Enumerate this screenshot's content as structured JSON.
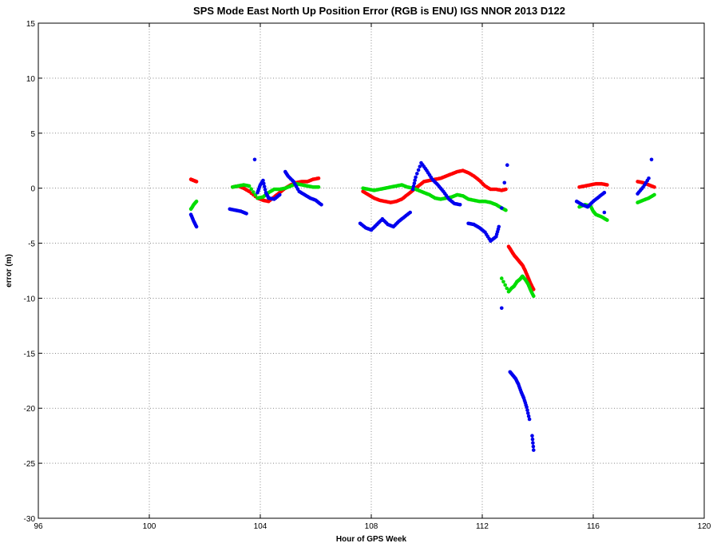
{
  "chart_data": {
    "type": "scatter",
    "title": "SPS Mode  East North Up Position Error  (RGB is ENU)  IGS NNOR 2013 D122",
    "xlabel": "Hour of GPS Week",
    "ylabel": "error (m)",
    "xlim": [
      96,
      120
    ],
    "ylim": [
      -30,
      15
    ],
    "xticks": [
      96,
      100,
      104,
      108,
      112,
      116,
      120
    ],
    "yticks": [
      -30,
      -25,
      -20,
      -15,
      -10,
      -5,
      0,
      5,
      10,
      15
    ],
    "grid": true,
    "series": [
      {
        "color": "#ff0000",
        "points": [
          [
            101.5,
            0.8
          ],
          [
            101.6,
            0.7
          ],
          [
            101.7,
            0.6
          ],
          [
            103.0,
            0.1
          ],
          [
            103.2,
            0.2
          ],
          [
            103.4,
            0.0
          ],
          [
            103.6,
            -0.3
          ],
          [
            103.9,
            -0.9
          ],
          [
            104.1,
            -1.1
          ],
          [
            104.3,
            -1.2
          ],
          [
            104.5,
            -0.8
          ],
          [
            104.7,
            -0.4
          ],
          [
            104.9,
            0.0
          ],
          [
            105.1,
            0.3
          ],
          [
            105.3,
            0.5
          ],
          [
            105.5,
            0.6
          ],
          [
            105.7,
            0.6
          ],
          [
            105.9,
            0.8
          ],
          [
            106.1,
            0.9
          ],
          [
            107.7,
            -0.3
          ],
          [
            107.9,
            -0.6
          ],
          [
            108.1,
            -0.9
          ],
          [
            108.3,
            -1.1
          ],
          [
            108.5,
            -1.2
          ],
          [
            108.7,
            -1.3
          ],
          [
            108.9,
            -1.2
          ],
          [
            109.1,
            -1.0
          ],
          [
            109.3,
            -0.6
          ],
          [
            109.5,
            -0.2
          ],
          [
            109.7,
            0.2
          ],
          [
            109.9,
            0.6
          ],
          [
            110.1,
            0.7
          ],
          [
            110.3,
            0.8
          ],
          [
            110.5,
            0.9
          ],
          [
            110.7,
            1.1
          ],
          [
            110.9,
            1.3
          ],
          [
            111.1,
            1.5
          ],
          [
            111.3,
            1.6
          ],
          [
            111.5,
            1.4
          ],
          [
            111.7,
            1.1
          ],
          [
            111.9,
            0.7
          ],
          [
            112.1,
            0.2
          ],
          [
            112.3,
            -0.1
          ],
          [
            112.5,
            -0.1
          ],
          [
            112.7,
            -0.2
          ],
          [
            112.85,
            -0.1
          ],
          [
            112.95,
            -5.3
          ],
          [
            113.05,
            -5.7
          ],
          [
            113.15,
            -6.1
          ],
          [
            113.25,
            -6.4
          ],
          [
            113.35,
            -6.7
          ],
          [
            113.45,
            -7.0
          ],
          [
            113.55,
            -7.5
          ],
          [
            113.65,
            -8.1
          ],
          [
            113.75,
            -8.7
          ],
          [
            113.85,
            -9.2
          ],
          [
            115.5,
            0.1
          ],
          [
            115.7,
            0.2
          ],
          [
            115.9,
            0.3
          ],
          [
            116.1,
            0.4
          ],
          [
            116.3,
            0.4
          ],
          [
            116.5,
            0.3
          ],
          [
            117.6,
            0.6
          ],
          [
            117.8,
            0.5
          ],
          [
            118.0,
            0.3
          ],
          [
            118.2,
            0.1
          ]
        ]
      },
      {
        "color": "#00dd00",
        "points": [
          [
            101.5,
            -1.9
          ],
          [
            101.6,
            -1.5
          ],
          [
            101.7,
            -1.2
          ],
          [
            103.0,
            0.1
          ],
          [
            103.2,
            0.2
          ],
          [
            103.4,
            0.3
          ],
          [
            103.6,
            0.2
          ],
          [
            103.9,
            -0.9
          ],
          [
            104.1,
            -0.8
          ],
          [
            104.3,
            -0.4
          ],
          [
            104.5,
            -0.1
          ],
          [
            104.7,
            -0.1
          ],
          [
            104.9,
            0.0
          ],
          [
            105.1,
            0.2
          ],
          [
            105.3,
            0.4
          ],
          [
            105.5,
            0.3
          ],
          [
            105.7,
            0.2
          ],
          [
            105.9,
            0.1
          ],
          [
            106.1,
            0.1
          ],
          [
            107.7,
            0.0
          ],
          [
            107.9,
            -0.1
          ],
          [
            108.1,
            -0.2
          ],
          [
            108.3,
            -0.1
          ],
          [
            108.5,
            0.0
          ],
          [
            108.7,
            0.1
          ],
          [
            108.9,
            0.2
          ],
          [
            109.1,
            0.3
          ],
          [
            109.3,
            0.1
          ],
          [
            109.5,
            0.0
          ],
          [
            109.7,
            -0.2
          ],
          [
            109.9,
            -0.4
          ],
          [
            110.1,
            -0.6
          ],
          [
            110.3,
            -0.9
          ],
          [
            110.5,
            -1.0
          ],
          [
            110.7,
            -0.9
          ],
          [
            110.9,
            -0.8
          ],
          [
            111.1,
            -0.6
          ],
          [
            111.3,
            -0.7
          ],
          [
            111.5,
            -1.0
          ],
          [
            111.7,
            -1.1
          ],
          [
            111.9,
            -1.2
          ],
          [
            112.1,
            -1.2
          ],
          [
            112.3,
            -1.3
          ],
          [
            112.5,
            -1.5
          ],
          [
            112.7,
            -1.8
          ],
          [
            112.85,
            -2.0
          ],
          [
            112.7,
            -8.2
          ],
          [
            112.95,
            -9.4
          ],
          [
            113.05,
            -9.1
          ],
          [
            113.15,
            -8.9
          ],
          [
            113.25,
            -8.5
          ],
          [
            113.35,
            -8.3
          ],
          [
            113.45,
            -8.0
          ],
          [
            113.55,
            -8.3
          ],
          [
            113.65,
            -8.7
          ],
          [
            113.75,
            -9.3
          ],
          [
            113.85,
            -9.8
          ],
          [
            115.5,
            -1.7
          ],
          [
            115.7,
            -1.5
          ],
          [
            115.9,
            -1.6
          ],
          [
            116.0,
            -2.1
          ],
          [
            116.1,
            -2.4
          ],
          [
            116.3,
            -2.6
          ],
          [
            116.5,
            -2.9
          ],
          [
            117.6,
            -1.3
          ],
          [
            117.8,
            -1.1
          ],
          [
            118.0,
            -0.9
          ],
          [
            118.2,
            -0.6
          ]
        ]
      },
      {
        "color": "#0000ee",
        "points": [
          [
            101.5,
            -2.4
          ],
          [
            101.6,
            -3.0
          ],
          [
            101.7,
            -3.5
          ],
          [
            102.9,
            -1.9
          ],
          [
            103.1,
            -2.0
          ],
          [
            103.3,
            -2.1
          ],
          [
            103.5,
            -2.3
          ],
          [
            103.8,
            2.6
          ],
          [
            103.9,
            -0.4
          ],
          [
            104.0,
            0.3
          ],
          [
            104.1,
            0.7
          ],
          [
            104.2,
            -0.4
          ],
          [
            104.3,
            -0.9
          ],
          [
            104.5,
            -1.0
          ],
          [
            104.7,
            -0.6
          ],
          [
            104.9,
            1.5
          ],
          [
            105.0,
            1.1
          ],
          [
            105.2,
            0.6
          ],
          [
            105.4,
            -0.3
          ],
          [
            105.6,
            -0.6
          ],
          [
            105.8,
            -0.9
          ],
          [
            106.0,
            -1.1
          ],
          [
            106.2,
            -1.5
          ],
          [
            107.6,
            -3.2
          ],
          [
            107.8,
            -3.6
          ],
          [
            108.0,
            -3.8
          ],
          [
            108.2,
            -3.3
          ],
          [
            108.4,
            -2.8
          ],
          [
            108.6,
            -3.3
          ],
          [
            108.8,
            -3.5
          ],
          [
            109.0,
            -3.0
          ],
          [
            109.2,
            -2.6
          ],
          [
            109.4,
            -2.2
          ],
          [
            109.5,
            -0.1
          ],
          [
            109.6,
            1.0
          ],
          [
            109.8,
            2.3
          ],
          [
            110.0,
            1.6
          ],
          [
            110.2,
            0.8
          ],
          [
            110.4,
            0.3
          ],
          [
            110.6,
            -0.3
          ],
          [
            110.8,
            -1.0
          ],
          [
            111.0,
            -1.4
          ],
          [
            111.2,
            -1.5
          ],
          [
            111.5,
            -3.2
          ],
          [
            111.7,
            -3.3
          ],
          [
            111.9,
            -3.6
          ],
          [
            112.1,
            -4.0
          ],
          [
            112.3,
            -4.8
          ],
          [
            112.5,
            -4.4
          ],
          [
            112.6,
            -3.5
          ],
          [
            112.7,
            -1.8
          ],
          [
            112.8,
            0.5
          ],
          [
            112.9,
            2.1
          ],
          [
            112.7,
            -10.9
          ],
          [
            113.0,
            -16.7
          ],
          [
            113.1,
            -17.0
          ],
          [
            113.2,
            -17.3
          ],
          [
            113.3,
            -17.8
          ],
          [
            113.4,
            -18.5
          ],
          [
            113.5,
            -19.1
          ],
          [
            113.6,
            -19.9
          ],
          [
            113.7,
            -21.0
          ],
          [
            113.8,
            -22.5
          ],
          [
            113.85,
            -23.8
          ],
          [
            115.4,
            -1.2
          ],
          [
            115.6,
            -1.5
          ],
          [
            115.8,
            -1.7
          ],
          [
            116.0,
            -1.2
          ],
          [
            116.2,
            -0.8
          ],
          [
            116.4,
            -0.4
          ],
          [
            116.4,
            -2.2
          ],
          [
            117.6,
            -0.5
          ],
          [
            117.8,
            0.1
          ],
          [
            118.0,
            0.9
          ],
          [
            118.1,
            2.6
          ]
        ]
      }
    ]
  }
}
